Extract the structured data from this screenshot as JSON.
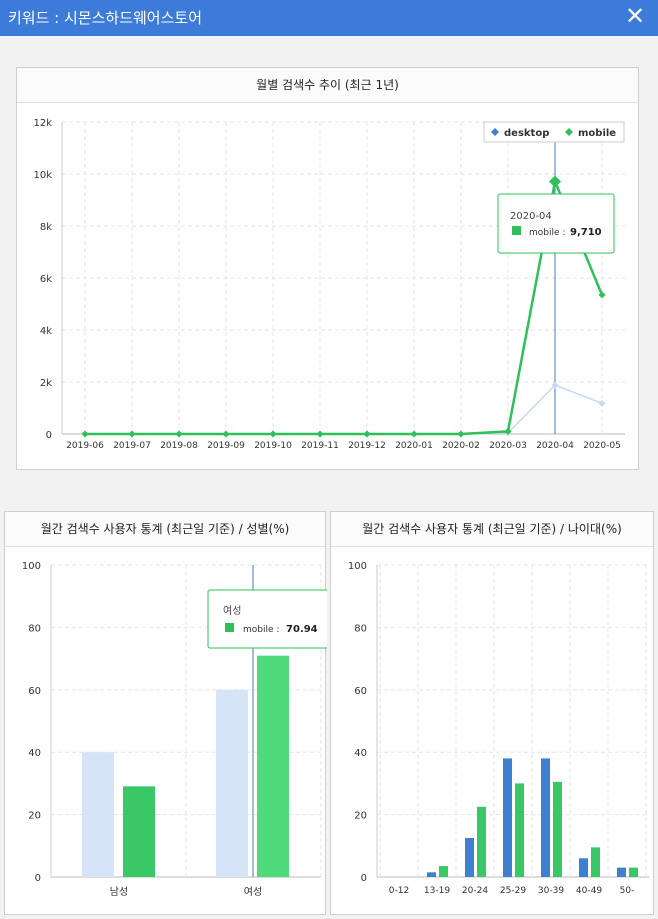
{
  "header": {
    "title": "키워드 : 시몬스하드웨어스토어",
    "close_label": "✕"
  },
  "charts": {
    "trend": {
      "title": "월별 검색수 추이 (최근 1년)",
      "tooltip": {
        "label": "2020-04",
        "series": "mobile",
        "value": "9,710"
      }
    },
    "gender": {
      "title": "월간 검색수 사용자 통계 (최근일 기준) / 성별(%)",
      "tooltip": {
        "label": "여성",
        "series": "mobile",
        "value": "70.94"
      }
    },
    "age": {
      "title": "월간 검색수 사용자 통계 (최근일 기준) / 나이대(%)"
    }
  },
  "chart_data": [
    {
      "type": "line",
      "title": "월별 검색수 추이 (최근 1년)",
      "x": [
        "2019-06",
        "2019-07",
        "2019-08",
        "2019-09",
        "2019-10",
        "2019-11",
        "2019-12",
        "2020-01",
        "2020-02",
        "2020-03",
        "2020-04",
        "2020-05"
      ],
      "series": [
        {
          "name": "desktop",
          "color": "#3f7fcf",
          "values": [
            0,
            0,
            0,
            0,
            0,
            0,
            0,
            0,
            0,
            40,
            1880,
            1180
          ]
        },
        {
          "name": "mobile",
          "color": "#2fc05a",
          "values": [
            0,
            0,
            0,
            0,
            0,
            0,
            0,
            0,
            0,
            100,
            9710,
            5350
          ]
        }
      ],
      "y_ticks": [
        "0",
        "2k",
        "4k",
        "6k",
        "8k",
        "10k",
        "12k"
      ],
      "ylim": [
        0,
        12000
      ],
      "grid": true,
      "legend": "top-right"
    },
    {
      "type": "bar",
      "title": "월간 검색수 사용자 통계 (최근일 기준) / 성별(%)",
      "categories": [
        "남성",
        "여성"
      ],
      "series": [
        {
          "name": "desktop",
          "color": "#d6e4f7",
          "values": [
            40,
            60
          ]
        },
        {
          "name": "mobile",
          "color": "#3ac866",
          "values": [
            29.06,
            70.94
          ]
        }
      ],
      "y_ticks": [
        "0",
        "20",
        "40",
        "60",
        "80",
        "100"
      ],
      "ylim": [
        0,
        100
      ],
      "grid": true
    },
    {
      "type": "bar",
      "title": "월간 검색수 사용자 통계 (최근일 기준) / 나이대(%)",
      "categories": [
        "0-12",
        "13-19",
        "20-24",
        "25-29",
        "30-39",
        "40-49",
        "50-"
      ],
      "series": [
        {
          "name": "desktop",
          "color": "#3f7fcf",
          "values": [
            0,
            1.5,
            12.5,
            38,
            38,
            6,
            3
          ]
        },
        {
          "name": "mobile",
          "color": "#3ac866",
          "values": [
            0,
            3.5,
            22.5,
            30,
            30.5,
            9.5,
            3
          ]
        }
      ],
      "y_ticks": [
        "0",
        "20",
        "40",
        "60",
        "80",
        "100"
      ],
      "ylim": [
        0,
        100
      ],
      "grid": true
    }
  ]
}
